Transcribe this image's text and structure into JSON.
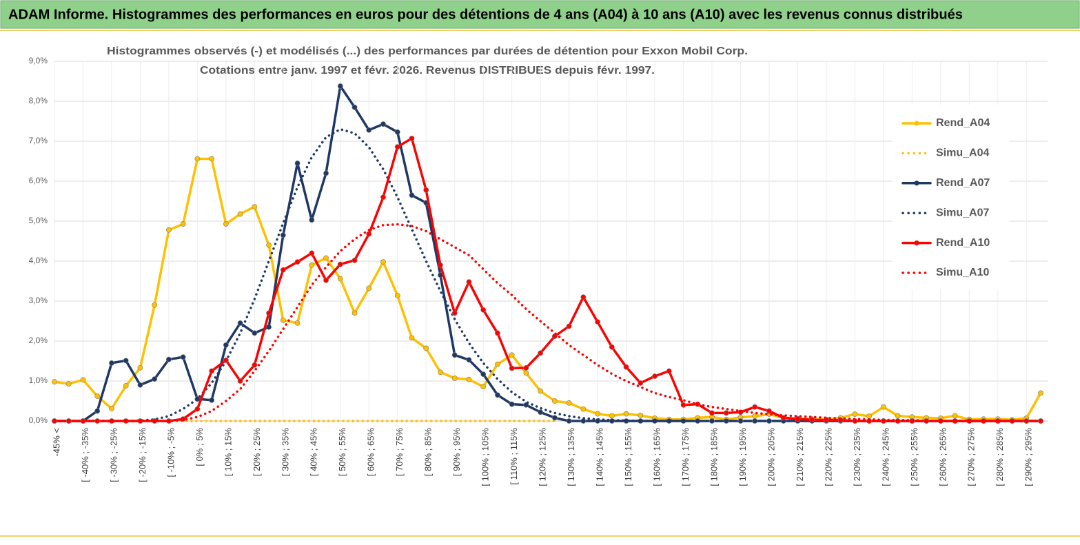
{
  "header": {
    "title": "ADAM Informe. Histogrammes des performances en euros pour des détentions de 4 ans (A04) à 10 ans (A10) avec les revenus connus distribués"
  },
  "chart_data": {
    "type": "line",
    "title": "Histogrammes observés (-) et modélisés (...) des performances par durées de détention pour Exxon Mobil Corp.",
    "subtitle": "Cotations entre janv. 1997 et févr. 2026. Revenus DISTRIBUES depuis févr. 1997.",
    "categories": [
      "-45% <",
      null,
      "[ -40% ; -35%",
      null,
      "[ -30% ; -25%",
      null,
      "[ -20% ; -15%",
      null,
      "[ -10% ; -5%",
      null,
      "[ 0% ; 5%",
      null,
      "[ 10% ; 15%",
      null,
      "[ 20% ; 25%",
      null,
      "[ 30% ; 35%",
      null,
      "[ 40% ; 45%",
      null,
      "[ 50% ; 55%",
      null,
      "[ 60% ; 65%",
      null,
      "[ 70% ; 75%",
      null,
      "[ 80% ; 85%",
      null,
      "[ 90% ; 95%",
      null,
      "[ 100% ; 105%",
      null,
      "[ 110% ; 115%",
      null,
      "[ 120% ; 125%",
      null,
      "[ 130% ; 135%",
      null,
      "[ 140% ; 145%",
      null,
      "[ 150% ; 155%",
      null,
      "[ 160% ; 165%",
      null,
      "[ 170% ; 175%",
      null,
      "[ 180% ; 185%",
      null,
      "[ 190% ; 195%",
      null,
      "[ 200% ; 205%",
      null,
      "[ 210% ; 215%",
      null,
      "[ 220% ; 225%",
      null,
      "[ 230% ; 235%",
      null,
      "[ 240% ; 245%",
      null,
      "[ 250% ; 255%",
      null,
      "[ 260% ; 265%",
      null,
      "[ 270% ; 275%",
      null,
      "[ 280% ; 285%",
      null,
      "[ 290% ; 295%",
      null
    ],
    "ylim": [
      0,
      9
    ],
    "yticks": [
      {
        "value": 0,
        "label": "0,0%"
      },
      {
        "value": 1,
        "label": "1,0%"
      },
      {
        "value": 2,
        "label": "2,0%"
      },
      {
        "value": 3,
        "label": "3,0%"
      },
      {
        "value": 4,
        "label": "4,0%"
      },
      {
        "value": 5,
        "label": "5,0%"
      },
      {
        "value": 6,
        "label": "6,0%"
      },
      {
        "value": 7,
        "label": "7,0%"
      },
      {
        "value": 8,
        "label": "8,0%"
      },
      {
        "value": 9,
        "label": "9,0%"
      }
    ],
    "grid": true,
    "legend": "right",
    "series": [
      {
        "name": "Rend_A04",
        "color": "#FFC000",
        "line_style": "solid",
        "markers": true,
        "values": [
          0.98,
          0.93,
          1.03,
          0.62,
          0.31,
          0.88,
          1.33,
          2.9,
          4.78,
          4.93,
          6.56,
          6.56,
          4.93,
          5.18,
          5.36,
          4.4,
          2.52,
          2.45,
          3.9,
          4.08,
          3.56,
          2.7,
          3.32,
          3.98,
          3.14,
          2.08,
          1.82,
          1.22,
          1.07,
          1.04,
          0.86,
          1.42,
          1.65,
          1.2,
          0.75,
          0.5,
          0.45,
          0.3,
          0.18,
          0.13,
          0.18,
          0.14,
          0.07,
          0.04,
          0.04,
          0.08,
          0.1,
          0.04,
          0.09,
          0.12,
          0.17,
          0.08,
          0.06,
          0.05,
          0.04,
          0.08,
          0.17,
          0.12,
          0.35,
          0.13,
          0.1,
          0.08,
          0.07,
          0.13,
          0.04,
          0.05,
          0.05,
          0.03,
          0.07,
          0.7
        ]
      },
      {
        "name": "Simu_A04",
        "color": "#FFC000",
        "line_style": "dotted",
        "markers": false,
        "values": [
          0,
          0,
          0,
          0,
          0,
          0,
          0,
          0,
          0,
          0,
          0,
          0,
          0,
          0,
          0,
          0,
          0,
          0,
          0,
          0,
          0,
          0,
          0,
          0,
          0,
          0,
          0,
          0,
          0,
          0,
          0,
          0,
          0,
          0,
          0,
          0,
          null,
          null,
          null,
          null,
          null,
          null,
          null,
          null,
          null,
          null,
          null,
          null,
          null,
          null,
          null,
          null,
          null,
          null,
          null,
          null,
          null,
          null,
          null,
          null,
          null,
          null,
          null,
          null,
          null,
          null,
          null,
          null,
          null,
          null
        ]
      },
      {
        "name": "Rend_A07",
        "color": "#1F3864",
        "line_style": "solid",
        "markers": true,
        "values": [
          0,
          0,
          0,
          0.25,
          1.45,
          1.51,
          0.9,
          1.05,
          1.54,
          1.6,
          0.55,
          0.52,
          1.9,
          2.45,
          2.2,
          2.35,
          4.65,
          6.45,
          5.03,
          6.2,
          8.38,
          7.85,
          7.28,
          7.43,
          7.23,
          5.65,
          5.46,
          3.65,
          1.65,
          1.53,
          1.17,
          0.65,
          0.42,
          0.4,
          0.22,
          0.08,
          0,
          0,
          0,
          0,
          0,
          0,
          0,
          0,
          0,
          0,
          0,
          0,
          0,
          0,
          0,
          0,
          0,
          0,
          0,
          0,
          0,
          0,
          0,
          0,
          0,
          0,
          0,
          0,
          0,
          0,
          0,
          0,
          0,
          0
        ]
      },
      {
        "name": "Simu_A07",
        "color": "#1F3864",
        "line_style": "dotted",
        "markers": false,
        "values": [
          0,
          0,
          0,
          0,
          0,
          0,
          0.01,
          0.04,
          0.12,
          0.3,
          0.55,
          0.95,
          1.5,
          2.2,
          3.05,
          4.0,
          4.95,
          5.85,
          6.6,
          7.1,
          7.3,
          7.2,
          6.85,
          6.3,
          5.6,
          4.8,
          4.0,
          3.25,
          2.55,
          1.95,
          1.45,
          1.05,
          0.72,
          0.48,
          0.32,
          0.2,
          0.12,
          0.07,
          0.04,
          0.02,
          0.01,
          0,
          0,
          0,
          0,
          0,
          0,
          0,
          0,
          0,
          0,
          0,
          0,
          0,
          0,
          0,
          0,
          0,
          0,
          0,
          0,
          0,
          0,
          0,
          0,
          0,
          0,
          0,
          0,
          0
        ]
      },
      {
        "name": "Rend_A10",
        "color": "#FF0000",
        "line_style": "solid",
        "markers": true,
        "values": [
          0,
          0,
          0,
          0,
          0,
          0,
          0,
          0,
          0,
          0.05,
          0.3,
          1.25,
          1.52,
          1.0,
          1.4,
          2.7,
          3.78,
          3.98,
          4.2,
          3.52,
          3.92,
          4.02,
          4.68,
          5.6,
          6.86,
          7.07,
          5.78,
          3.9,
          2.7,
          3.48,
          2.78,
          2.2,
          1.32,
          1.33,
          1.7,
          2.12,
          2.37,
          3.1,
          2.48,
          1.85,
          1.35,
          0.95,
          1.12,
          1.25,
          0.4,
          0.42,
          0.2,
          0.2,
          0.22,
          0.35,
          0.25,
          0.08,
          0.05,
          0.03,
          0.02,
          0.02,
          0,
          0,
          0,
          0,
          0,
          0,
          0,
          0,
          0,
          0,
          0,
          0,
          0,
          0
        ]
      },
      {
        "name": "Simu_A10",
        "color": "#FF0000",
        "line_style": "dotted",
        "markers": false,
        "values": [
          0,
          0,
          0,
          0,
          0,
          0,
          0,
          0,
          0,
          0.02,
          0.1,
          0.25,
          0.5,
          0.8,
          1.25,
          1.75,
          2.3,
          2.85,
          3.4,
          3.85,
          4.25,
          4.55,
          4.78,
          4.9,
          4.92,
          4.88,
          4.75,
          4.55,
          4.35,
          4.15,
          3.8,
          3.45,
          3.15,
          2.8,
          2.5,
          2.2,
          1.9,
          1.65,
          1.4,
          1.18,
          1.0,
          0.85,
          0.7,
          0.6,
          0.52,
          0.42,
          0.35,
          0.3,
          0.25,
          0.2,
          0.17,
          0.14,
          0.12,
          0.1,
          0.08,
          0.06,
          0.05,
          0.04,
          0.03,
          0.02,
          0.02,
          0.01,
          0,
          0,
          0,
          0,
          0,
          0,
          0,
          0
        ]
      }
    ]
  }
}
